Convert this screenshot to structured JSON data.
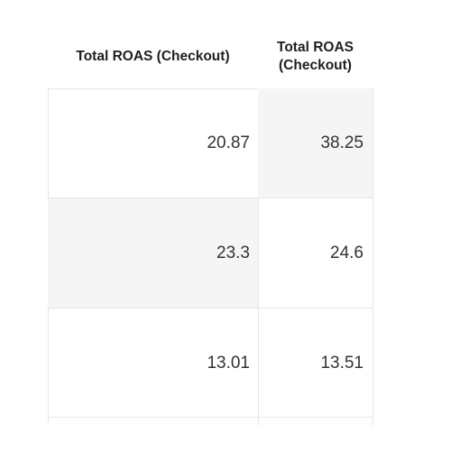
{
  "table": {
    "columns": [
      {
        "label": "Total ROAS (Checkout)"
      },
      {
        "label": "Total ROAS\n(Checkout)"
      }
    ],
    "rows": [
      {
        "c1": "20.87",
        "c2": "38.25"
      },
      {
        "c1": "23.3",
        "c2": "24.6"
      },
      {
        "c1": "13.01",
        "c2": "13.51"
      }
    ],
    "cell_colors": {
      "shaded": "#f5f5f5",
      "border": "#e6e6e6"
    }
  }
}
